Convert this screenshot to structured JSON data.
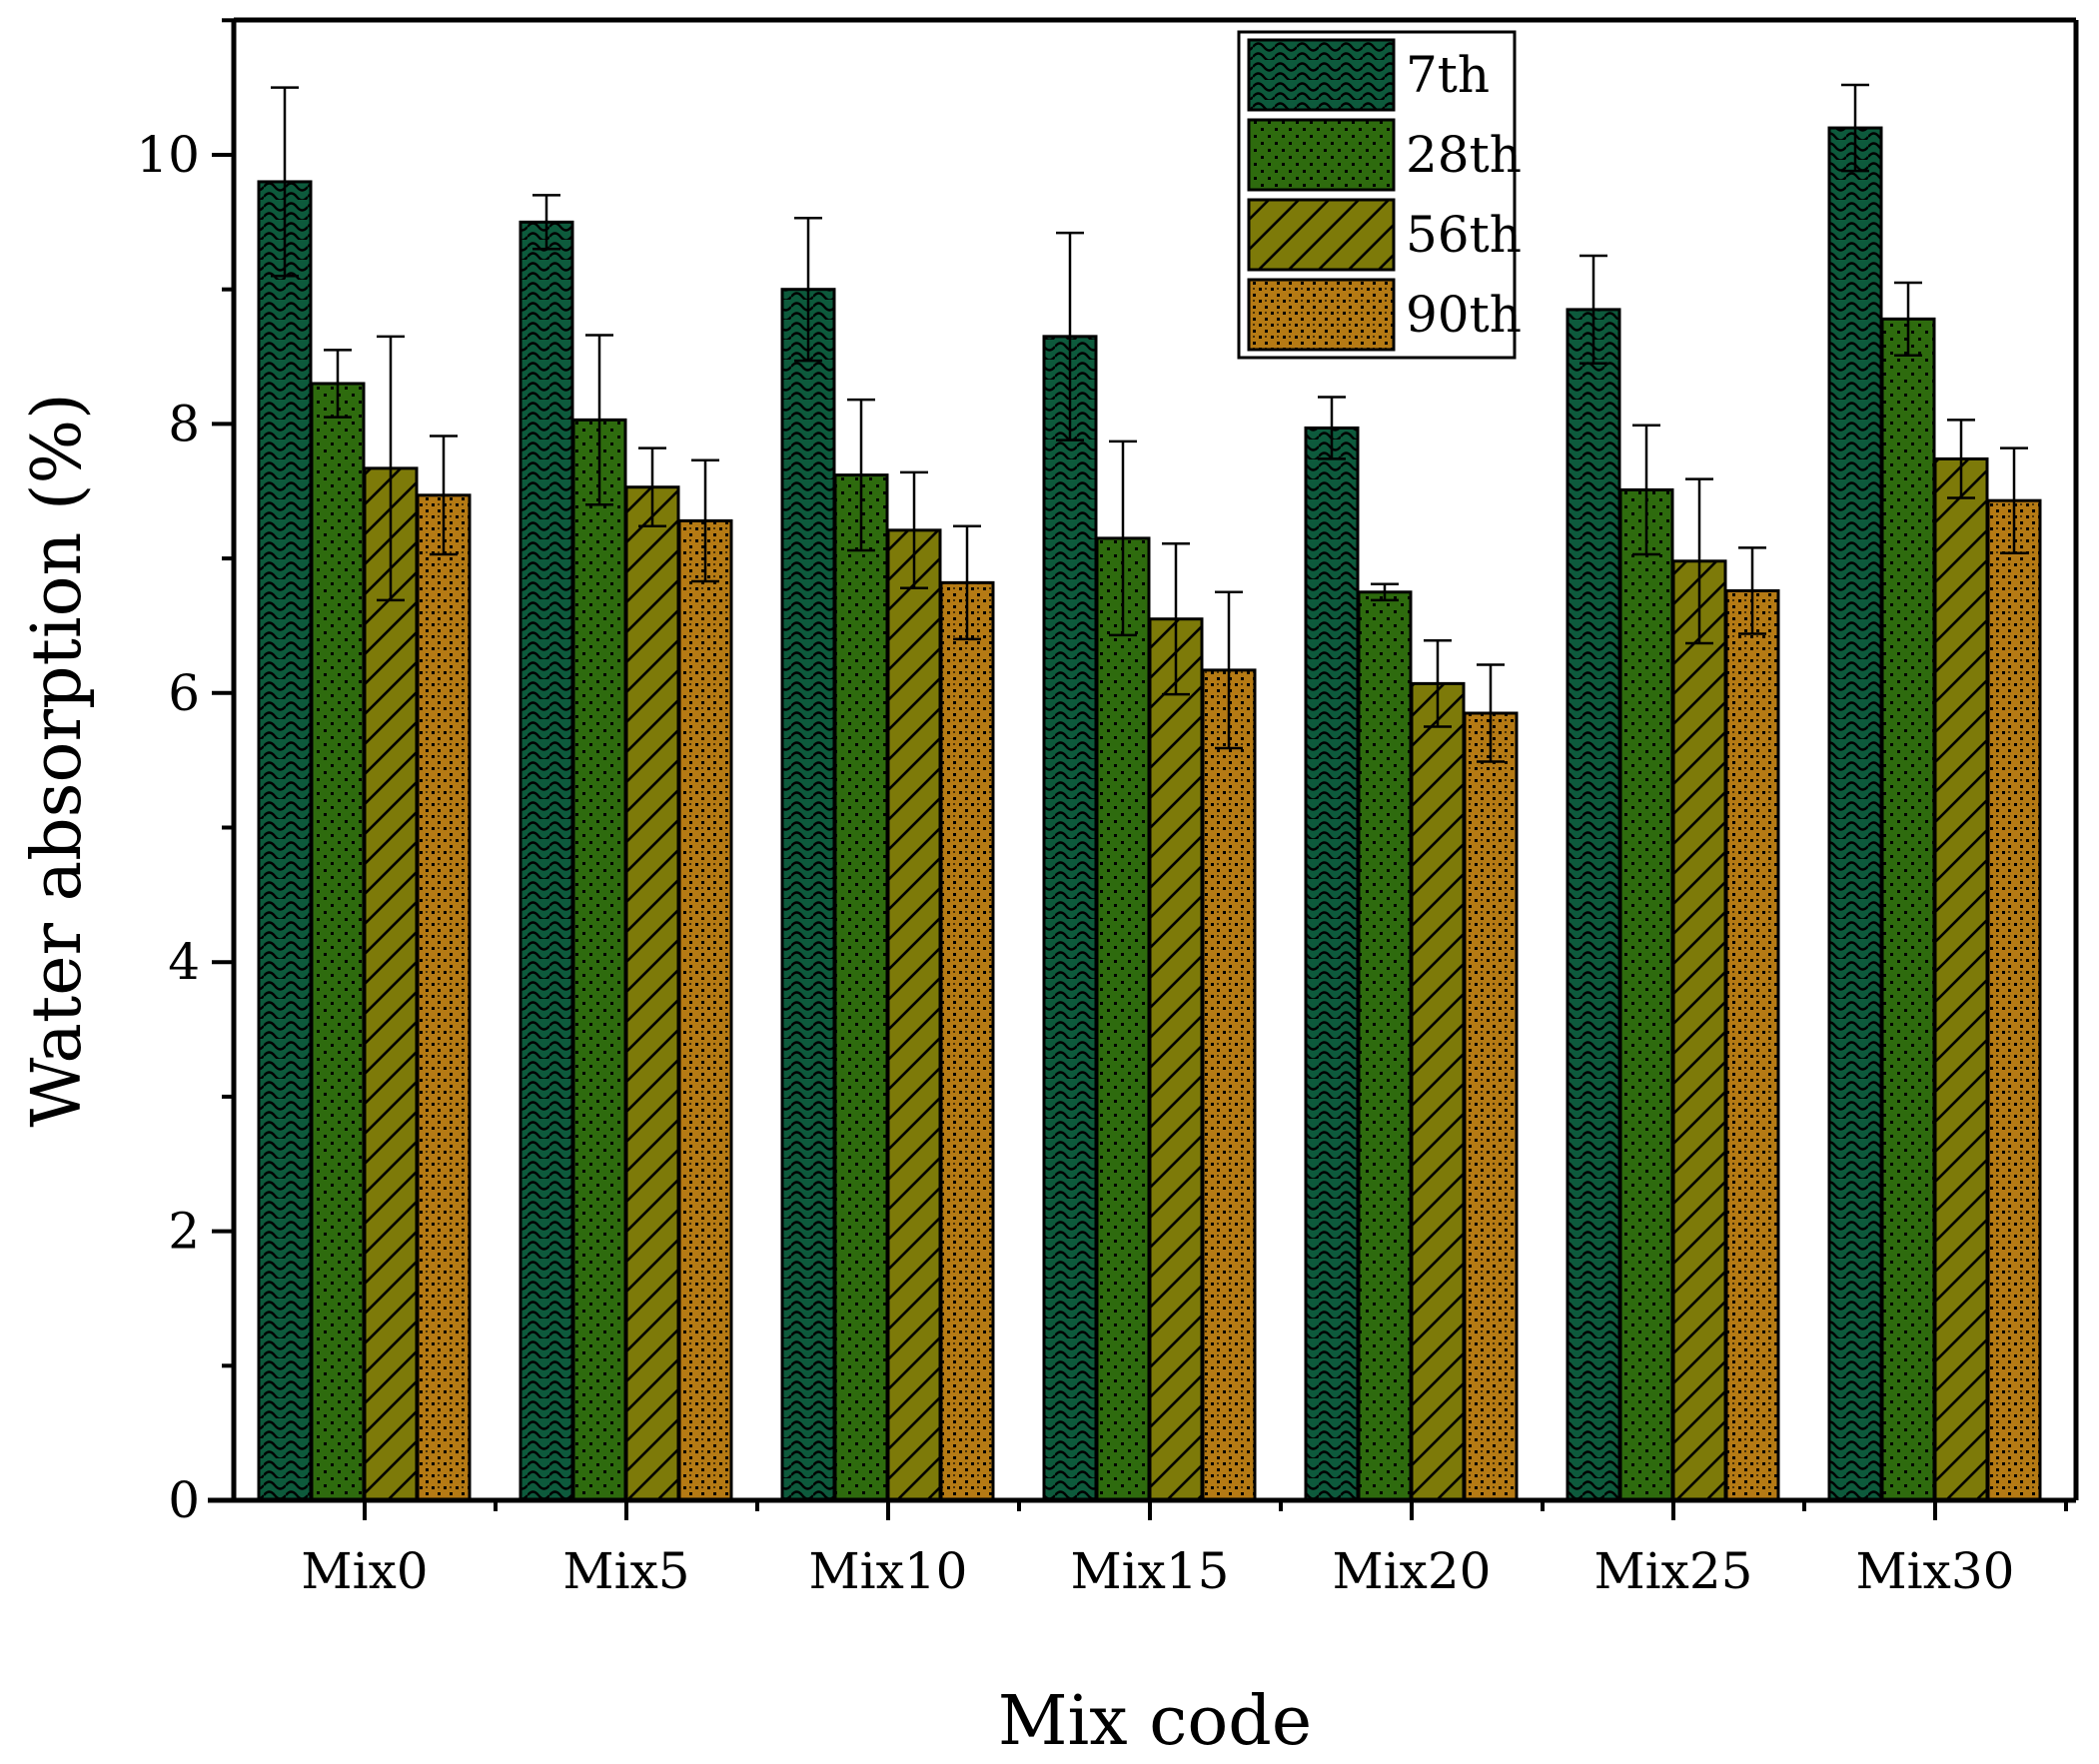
{
  "chart_data": {
    "type": "bar",
    "title": "",
    "xlabel": "Mix code",
    "ylabel": "Water absorption (%)",
    "ylim": [
      0,
      11
    ],
    "yticks": [
      0,
      2,
      4,
      6,
      8,
      10
    ],
    "grid": false,
    "legend_position": "top-right",
    "categories": [
      "Mix0",
      "Mix5",
      "Mix10",
      "Mix15",
      "Mix20",
      "Mix25",
      "Mix30"
    ],
    "series": [
      {
        "name": "7th",
        "color": "#0d5a3c",
        "pattern": "wave",
        "values": [
          9.8,
          9.5,
          9.0,
          8.65,
          7.97,
          8.85,
          10.2
        ],
        "errors": [
          0.7,
          0.2,
          0.53,
          0.77,
          0.23,
          0.4,
          0.32
        ]
      },
      {
        "name": "28th",
        "color": "#2e6b0e",
        "pattern": "dots",
        "values": [
          8.3,
          8.03,
          7.62,
          7.15,
          6.75,
          7.51,
          8.78
        ],
        "errors": [
          0.25,
          0.63,
          0.56,
          0.72,
          0.06,
          0.48,
          0.27
        ]
      },
      {
        "name": "56th",
        "color": "#7d7a09",
        "pattern": "diagonal",
        "values": [
          7.67,
          7.53,
          7.21,
          6.55,
          6.07,
          6.98,
          7.74
        ],
        "errors": [
          0.98,
          0.29,
          0.43,
          0.56,
          0.32,
          0.61,
          0.29
        ]
      },
      {
        "name": "90th",
        "color": "#b57a14",
        "pattern": "checker",
        "values": [
          7.47,
          7.28,
          6.82,
          6.17,
          5.85,
          6.76,
          7.43
        ],
        "errors": [
          0.44,
          0.45,
          0.42,
          0.58,
          0.36,
          0.32,
          0.39
        ]
      }
    ]
  }
}
